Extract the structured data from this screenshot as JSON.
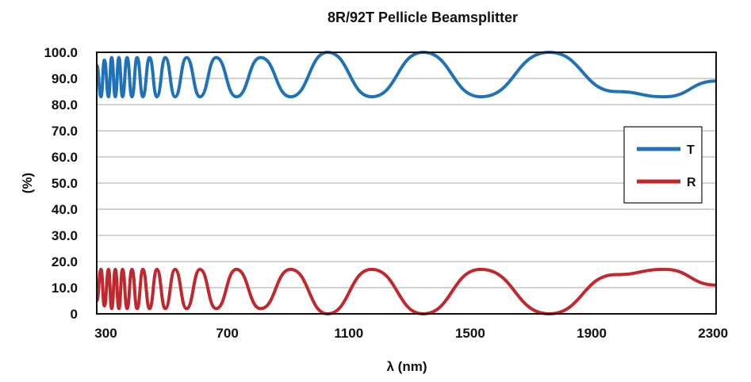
{
  "chart_data": {
    "type": "line",
    "title": "8R/92T Pellicle Beamsplitter",
    "xlabel": "λ (nm)",
    "ylabel": "(%)",
    "xlim": [
      270,
      2310
    ],
    "ylim": [
      0,
      100
    ],
    "x_ticks": [
      300,
      700,
      1100,
      1500,
      1900,
      2300
    ],
    "x_tick_labels": [
      "300",
      "700",
      "1100",
      "1500",
      "1900",
      "2300"
    ],
    "y_ticks": [
      0,
      10,
      20,
      30,
      40,
      50,
      60,
      70,
      80,
      90,
      100
    ],
    "y_tick_labels": [
      "0",
      "10.0",
      "20.0",
      "30.0",
      "40.0",
      "50.0",
      "60.0",
      "70.0",
      "80.0",
      "90.0",
      "100.0"
    ],
    "grid": "horizontal",
    "legend_position": "right",
    "series": [
      {
        "name": "T",
        "color": "#1f72b8",
        "x": [
          270,
          284,
          295,
          309,
          319,
          331,
          343,
          355,
          370,
          386,
          403,
          422,
          444,
          468,
          496,
          528,
          566,
          610,
          663,
          730,
          810,
          908,
          1030,
          1175,
          1345,
          1535,
          1760,
          1980,
          2140,
          2310
        ],
        "values": [
          95,
          83,
          97,
          83,
          98,
          83,
          98,
          83,
          98,
          83,
          98,
          83,
          98,
          83,
          98,
          83,
          98,
          83,
          98,
          83,
          98,
          83,
          100,
          83,
          100,
          83,
          100,
          85,
          83,
          89
        ]
      },
      {
        "name": "R",
        "color": "#c0282d",
        "x": [
          270,
          284,
          295,
          309,
          319,
          331,
          343,
          355,
          370,
          386,
          403,
          422,
          444,
          468,
          496,
          528,
          566,
          610,
          663,
          730,
          810,
          908,
          1030,
          1175,
          1345,
          1535,
          1760,
          1980,
          2140,
          2310
        ],
        "values": [
          5,
          17,
          3,
          17,
          2,
          17,
          2,
          17,
          2,
          17,
          2,
          17,
          2,
          17,
          2,
          17,
          2,
          17,
          2,
          17,
          2,
          17,
          0,
          17,
          0,
          17,
          0,
          15,
          17,
          11
        ]
      }
    ]
  }
}
